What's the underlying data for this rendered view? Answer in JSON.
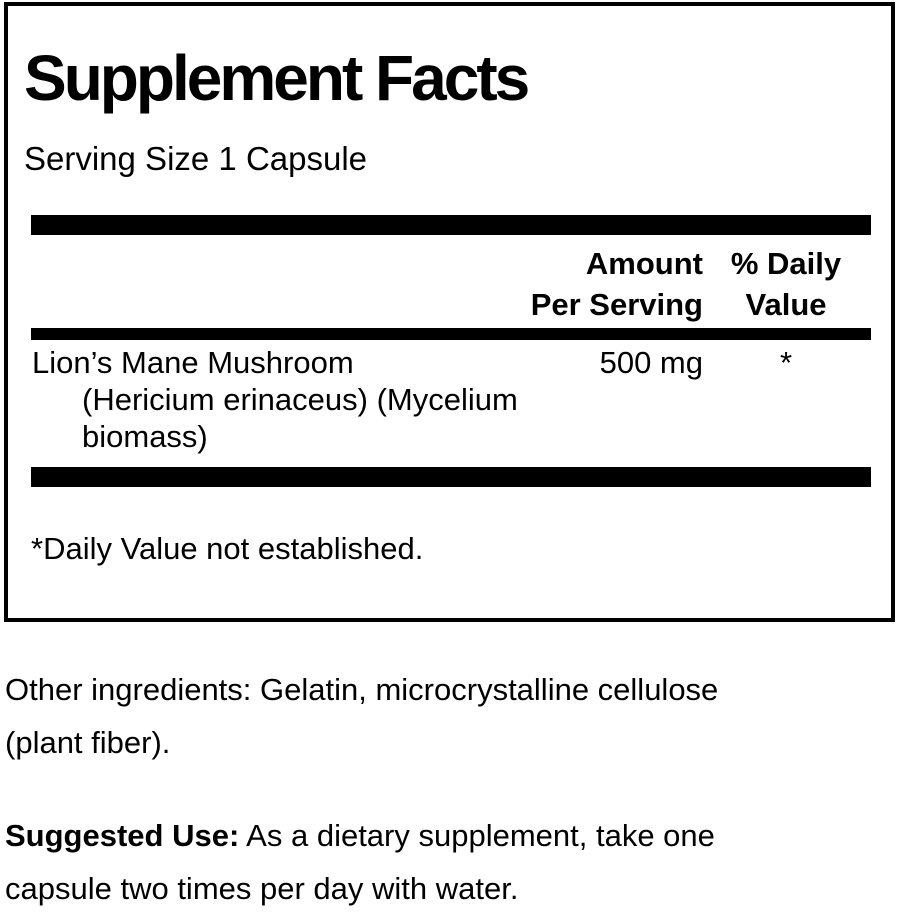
{
  "panel": {
    "title": "Supplement Facts",
    "serving_size": "Serving Size 1 Capsule",
    "columns": {
      "amount_line1": "Amount",
      "amount_line2": "Per Serving",
      "dv_line1": "% Daily",
      "dv_line2": "Value"
    },
    "ingredient": {
      "name_lines": [
        "Lion’s Mane Mushroom",
        "(Hericium erinaceus) (Mycelium",
        "biomass)"
      ],
      "amount": "500 mg",
      "daily_value": "*"
    },
    "footnote": "*Daily Value not established."
  },
  "other_ingredients": {
    "line1": "Other ingredients: Gelatin, microcrystalline cellulose",
    "line2": "(plant fiber)."
  },
  "suggested_use": {
    "label": "Suggested Use:",
    "line1_rest": " As a dietary supplement, take one",
    "line2": "capsule two times per day with water."
  },
  "colors": {
    "text": "#000000",
    "background": "#ffffff",
    "divider": "#000000",
    "border": "#000000"
  }
}
